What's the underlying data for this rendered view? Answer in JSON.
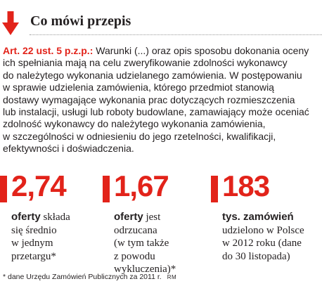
{
  "colors": {
    "accent": "#e2231a",
    "text": "#231f20",
    "rule": "#9a9a9a"
  },
  "header": {
    "icon": "arrow-down-icon",
    "title": "Co mówi przepis"
  },
  "article": {
    "reference": "Art. 22 ust. 5 p.z.p.:",
    "lines": [
      " Warunki (...) oraz opis sposobu dokonania oceny",
      "ich spełniania mają na celu zweryfikowanie zdolności wykonawcy",
      "do należytego wykonania udzielanego zamówienia. W postępowaniu",
      "w sprawie udzielenia zamówienia, którego przedmiot stanowią",
      "dostawy wymagające wykonania prac dotyczących rozmieszczenia",
      "lub instalacji, usługi lub roboty budowlane, zamawiający może oceniać",
      "zdolność wykonawcy do należytego wykonania zamówienia,",
      "w szczególności w odniesieniu do jego rzetelności, kwalifikacji,",
      "efektywności i doświadczenia."
    ]
  },
  "stats": [
    {
      "number": "2,74",
      "bold": "oferty",
      "first_rest": " składa",
      "lines": [
        "się średnio",
        "w jednym",
        "przetargu*"
      ]
    },
    {
      "number": "1,67",
      "bold": "oferty",
      "first_rest": " jest",
      "lines": [
        "odrzucana",
        "(w tym także",
        "z powodu",
        "wykluczenia)*"
      ]
    },
    {
      "number": "183",
      "bold": "tys. zamówień",
      "first_rest": "",
      "lines": [
        "udzielono w Polsce",
        "w 2012 roku (dane",
        "do 30 listopada)"
      ]
    }
  ],
  "footnote": {
    "text": "* dane Urzędu Zamówień Publicznych za 2011 r.",
    "credit": "RM"
  }
}
